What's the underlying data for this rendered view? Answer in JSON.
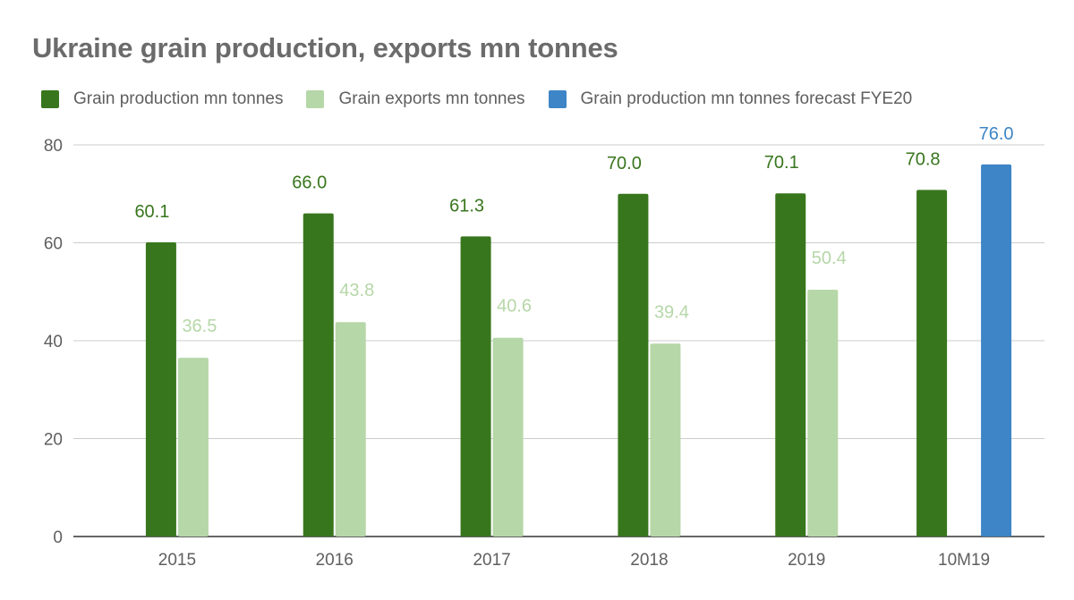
{
  "chart_data": {
    "type": "bar",
    "title": "Ukraine grain production, exports mn tonnes",
    "xlabel": "",
    "ylabel": "",
    "ylim": [
      0,
      80
    ],
    "yticks": [
      0,
      20,
      40,
      60,
      80
    ],
    "legend_position": "top-left",
    "grid": true,
    "categories": [
      "2015",
      "2016",
      "2017",
      "2018",
      "2019",
      "10M19"
    ],
    "series": [
      {
        "name": "Grain production mn tonnes",
        "color": "#38761d",
        "values": [
          60.1,
          66.0,
          61.3,
          70.0,
          70.1,
          70.8
        ],
        "labels": [
          "60.1",
          "66.0",
          "61.3",
          "70.0",
          "70.1",
          "70.8"
        ]
      },
      {
        "name": "Grain exports mn tonnes",
        "color": "#b6d7a8",
        "values": [
          36.5,
          43.8,
          40.6,
          39.4,
          50.4,
          null
        ],
        "labels": [
          "36.5",
          "43.8",
          "40.6",
          "39.4",
          "50.4",
          null
        ]
      },
      {
        "name": "Grain production mn tonnes forecast FYE20",
        "color": "#3d85c6",
        "values": [
          null,
          null,
          null,
          null,
          null,
          76.0
        ],
        "labels": [
          null,
          null,
          null,
          null,
          null,
          "76.0"
        ]
      }
    ]
  }
}
